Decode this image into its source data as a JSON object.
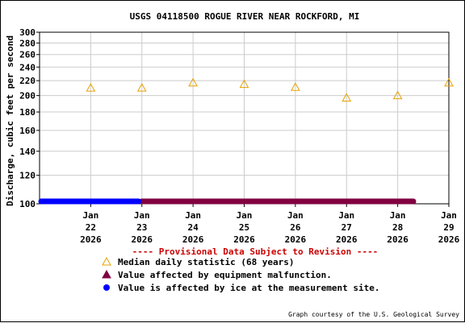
{
  "chart_data": {
    "type": "scatter",
    "title": "USGS 04118500 ROGUE RIVER NEAR ROCKFORD, MI",
    "ylabel": "Discharge, cubic feet per second",
    "y_scale": "log",
    "ylim": [
      100,
      300
    ],
    "y_ticks": [
      100,
      120,
      140,
      160,
      180,
      200,
      220,
      240,
      260,
      280,
      300
    ],
    "x_range": [
      "2026-01-21T12:00",
      "2026-01-29T12:00"
    ],
    "x_ticks": [
      {
        "date": "2026-01-22T12:00",
        "line1": "Jan",
        "line2": "22",
        "line3": "2026"
      },
      {
        "date": "2026-01-23T12:00",
        "line1": "Jan",
        "line2": "23",
        "line3": "2026"
      },
      {
        "date": "2026-01-24T12:00",
        "line1": "Jan",
        "line2": "24",
        "line3": "2026"
      },
      {
        "date": "2026-01-25T12:00",
        "line1": "Jan",
        "line2": "25",
        "line3": "2026"
      },
      {
        "date": "2026-01-26T12:00",
        "line1": "Jan",
        "line2": "26",
        "line3": "2026"
      },
      {
        "date": "2026-01-27T12:00",
        "line1": "Jan",
        "line2": "27",
        "line3": "2026"
      },
      {
        "date": "2026-01-28T12:00",
        "line1": "Jan",
        "line2": "28",
        "line3": "2026"
      },
      {
        "date": "2026-01-29T12:00",
        "line1": "Jan",
        "line2": "29",
        "line3": "2026"
      }
    ],
    "grid": true,
    "median_points": [
      {
        "date": "2026-01-22T12:00",
        "value": 210
      },
      {
        "date": "2026-01-23T12:00",
        "value": 210
      },
      {
        "date": "2026-01-24T12:00",
        "value": 217
      },
      {
        "date": "2026-01-25T12:00",
        "value": 215
      },
      {
        "date": "2026-01-26T12:00",
        "value": 211
      },
      {
        "date": "2026-01-27T12:00",
        "value": 197
      },
      {
        "date": "2026-01-28T12:00",
        "value": 200
      },
      {
        "date": "2026-01-29T12:00",
        "value": 217
      }
    ],
    "ice_segment": {
      "start": "2026-01-21T12:00",
      "end": "2026-01-23T12:00",
      "value": 100
    },
    "equipment_segment": {
      "start": "2026-01-23T12:00",
      "end": "2026-01-29T12:00",
      "value": 100
    },
    "provisional_note": "---- Provisional Data Subject to Revision ----",
    "legend": [
      {
        "symbol": "triangle",
        "label": "Median daily statistic (68 years)"
      },
      {
        "symbol": "triangle-filled",
        "label": "Value affected by equipment malfunction."
      },
      {
        "symbol": "circle",
        "label": "Value is affected by ice at the measurement site."
      }
    ],
    "credit": "Graph courtesy of the U.S. Geological Survey",
    "colors": {
      "median": "#e8a000",
      "equipment": "#800040",
      "ice": "#0000ff",
      "provisional": "#cc0000",
      "grid": "#cccccc",
      "axis": "#000000"
    }
  }
}
